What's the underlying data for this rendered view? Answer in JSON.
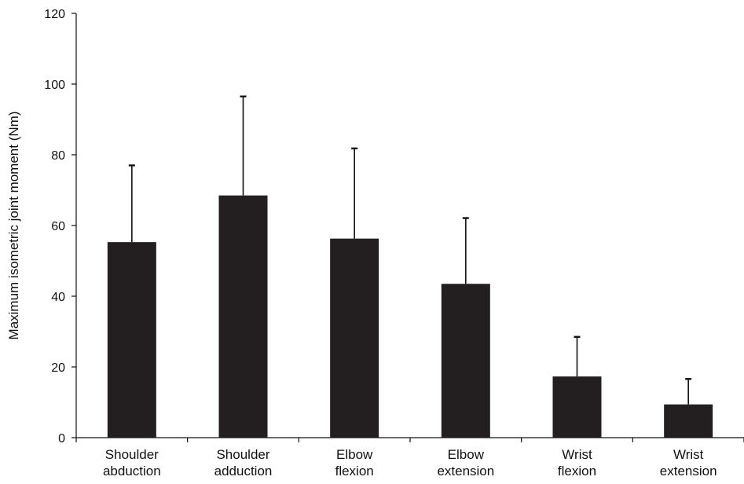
{
  "chart_data": {
    "type": "bar",
    "title": "",
    "xlabel": "",
    "ylabel": "Maximum isometric joint moment (Nm)",
    "ylim": [
      0,
      120
    ],
    "yticks": [
      0,
      20,
      40,
      60,
      80,
      100,
      120
    ],
    "grid": false,
    "categories": [
      [
        "Shoulder",
        "abduction"
      ],
      [
        "Shoulder",
        "adduction"
      ],
      [
        "Elbow",
        "flexion"
      ],
      [
        "Elbow",
        "extension"
      ],
      [
        "Wrist",
        "flexion"
      ],
      [
        "Wrist",
        "extension"
      ]
    ],
    "values": [
      55.3,
      68.5,
      56.3,
      43.5,
      17.3,
      9.4
    ],
    "error_upper": [
      77.0,
      96.5,
      81.8,
      62.1,
      28.5,
      16.6
    ],
    "bar_color": "#231f20"
  }
}
